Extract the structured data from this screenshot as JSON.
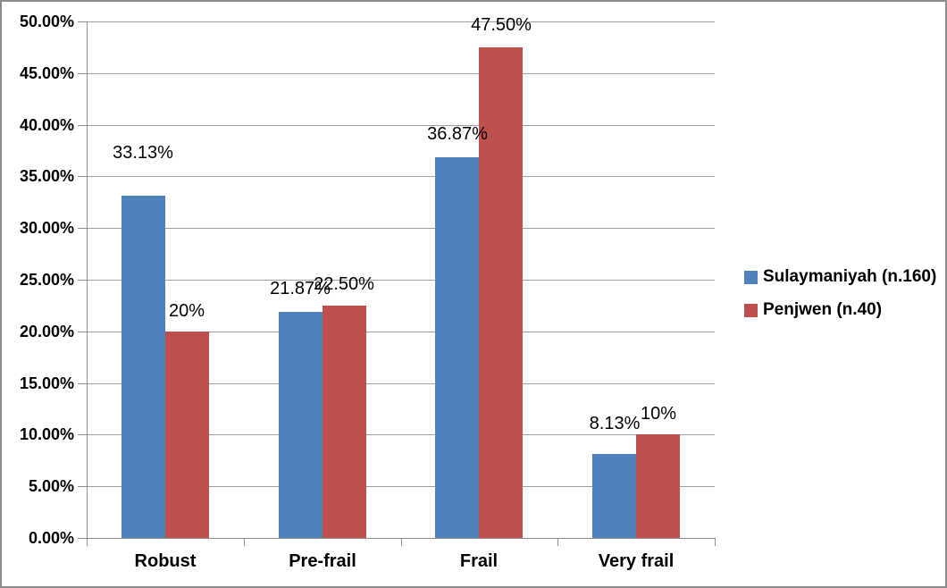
{
  "window": {
    "background": "#FFFFFF",
    "border_color": "#8C8C8C"
  },
  "chart_data": {
    "type": "bar",
    "title": "",
    "xlabel": "",
    "ylabel": "",
    "categories": [
      "Robust",
      "Pre-frail",
      "Frail",
      "Very frail"
    ],
    "series": [
      {
        "name": "Sulaymaniyah (n.160)",
        "color": "#4F81BD",
        "values": [
          33.13,
          21.87,
          36.87,
          8.13
        ],
        "data_labels": [
          "33.13%",
          "21.87%",
          "36.87%",
          "8.13%"
        ]
      },
      {
        "name": "Penjwen (n.40)",
        "color": "#C0504D",
        "values": [
          20,
          22.5,
          47.5,
          10
        ],
        "data_labels": [
          "20%",
          "22.50%",
          "47.50%",
          "10%"
        ]
      }
    ],
    "y_axis": {
      "min": 0,
      "max": 50,
      "step": 5,
      "tick_labels": [
        "0.00%",
        "5.00%",
        "10.00%",
        "15.00%",
        "20.00%",
        "25.00%",
        "30.00%",
        "35.00%",
        "40.00%",
        "45.00%",
        "50.00%"
      ]
    },
    "grid": true,
    "legend_position": "right",
    "colors": {
      "gridline": "#A0A0A0",
      "axis": "#8C8C8C",
      "text": "#000000"
    },
    "label_gaps": [
      [
        36,
        14,
        14,
        22
      ],
      [
        11,
        12,
        13,
        11
      ]
    ]
  }
}
